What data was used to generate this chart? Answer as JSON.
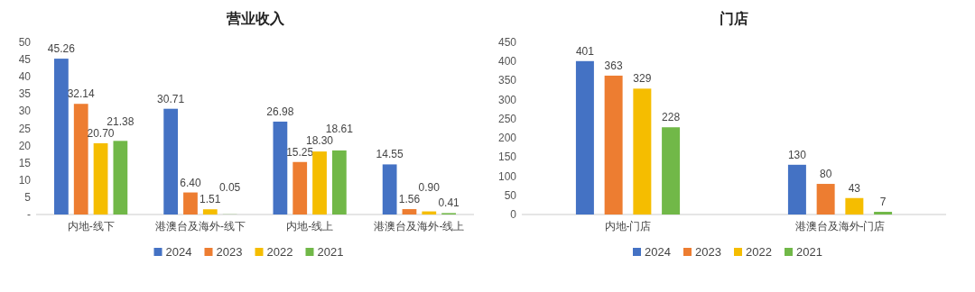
{
  "chart_data": [
    {
      "type": "bar",
      "title": "营业收入",
      "categories": [
        "内地-线下",
        "港澳台及海外-线下",
        "内地-线上",
        "港澳台及海外-线上"
      ],
      "series": [
        {
          "name": "2024",
          "color": "#4472c4",
          "values": [
            45.26,
            30.71,
            26.98,
            14.55
          ],
          "value_labels": [
            "45.26",
            "30.71",
            "26.98",
            "14.55"
          ]
        },
        {
          "name": "2023",
          "color": "#ed7d31",
          "values": [
            32.14,
            6.4,
            15.25,
            1.56
          ],
          "value_labels": [
            "32.14",
            "6.40",
            "15.25",
            "1.56"
          ]
        },
        {
          "name": "2022",
          "color": "#f5bd00",
          "values": [
            20.7,
            1.51,
            18.3,
            0.9
          ],
          "value_labels": [
            "20.70",
            "1.51",
            "18.30",
            "0.90"
          ]
        },
        {
          "name": "2021",
          "color": "#71b848",
          "values": [
            21.38,
            0.05,
            18.61,
            0.41
          ],
          "value_labels": [
            "21.38",
            "0.05",
            "18.61",
            "0.41"
          ]
        }
      ],
      "ylim": [
        0,
        50
      ],
      "yticks": [
        {
          "value": 0,
          "label": "-"
        },
        5,
        10,
        15,
        20,
        25,
        30,
        35,
        40,
        45,
        50
      ],
      "grid": false,
      "legend": "bottom"
    },
    {
      "type": "bar",
      "title": "门店",
      "categories": [
        "内地-门店",
        "港澳台及海外-门店"
      ],
      "series": [
        {
          "name": "2024",
          "color": "#4472c4",
          "values": [
            401,
            130
          ]
        },
        {
          "name": "2023",
          "color": "#ed7d31",
          "values": [
            363,
            80
          ]
        },
        {
          "name": "2022",
          "color": "#f5bd00",
          "values": [
            329,
            43
          ]
        },
        {
          "name": "2021",
          "color": "#71b848",
          "values": [
            228,
            7
          ]
        }
      ],
      "ylim": [
        0,
        450
      ],
      "yticks": [
        0,
        50,
        100,
        150,
        200,
        250,
        300,
        350,
        400,
        450
      ],
      "grid": false,
      "legend": "bottom",
      "data_labels": true
    }
  ]
}
